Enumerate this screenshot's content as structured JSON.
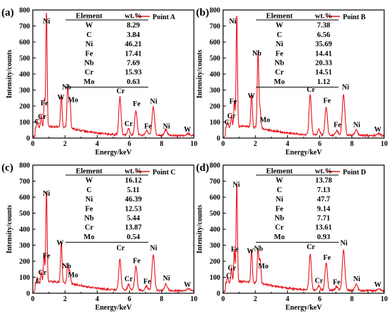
{
  "figure": {
    "panels": [
      {
        "panel_label": "(a)",
        "legend": "Point A",
        "table": {
          "headers": [
            "Element",
            "wt.%"
          ],
          "rows": [
            [
              "W",
              "8.29"
            ],
            [
              "C",
              "3.84"
            ],
            [
              "Ni",
              "46.21"
            ],
            [
              "Fe",
              "17.41"
            ],
            [
              "Nb",
              "7.69"
            ],
            [
              "Cr",
              "15.93"
            ],
            [
              "Mo",
              "0.63"
            ]
          ]
        },
        "peak_labels": [
          {
            "text": "C",
            "x": 0.28,
            "y": 90
          },
          {
            "text": "Cr",
            "x": 0.58,
            "y": 120
          },
          {
            "text": "Fe",
            "x": 0.72,
            "y": 205
          },
          {
            "text": "Ni",
            "x": 0.85,
            "y": 715
          },
          {
            "text": "W",
            "x": 1.75,
            "y": 240
          },
          {
            "text": "Nb",
            "x": 2.1,
            "y": 305
          },
          {
            "text": "Mo",
            "x": 2.5,
            "y": 225
          },
          {
            "text": "Cr",
            "x": 5.45,
            "y": 280
          },
          {
            "text": "Cr",
            "x": 5.95,
            "y": 75
          },
          {
            "text": "Fe",
            "x": 6.45,
            "y": 200
          },
          {
            "text": "Fe",
            "x": 7.15,
            "y": 60
          },
          {
            "text": "Ni",
            "x": 7.5,
            "y": 215
          },
          {
            "text": "Ni",
            "x": 8.3,
            "y": 60
          },
          {
            "text": "W",
            "x": 9.6,
            "y": 40
          }
        ]
      },
      {
        "panel_label": "(b)",
        "legend": "Point B",
        "table": {
          "headers": [
            "Element",
            "wt.%"
          ],
          "rows": [
            [
              "W",
              "7.38"
            ],
            [
              "C",
              "6.56"
            ],
            [
              "Ni",
              "35.69"
            ],
            [
              "Fe",
              "14.41"
            ],
            [
              "Nb",
              "20.33"
            ],
            [
              "Cr",
              "14.51"
            ],
            [
              "Mo",
              "1.12"
            ]
          ]
        },
        "peak_labels": [
          {
            "text": "C",
            "x": 0.25,
            "y": 85
          },
          {
            "text": "Cr",
            "x": 0.52,
            "y": 125
          },
          {
            "text": "Fe",
            "x": 0.62,
            "y": 215
          },
          {
            "text": "Ni",
            "x": 0.6,
            "y": 715
          },
          {
            "text": "W",
            "x": 1.75,
            "y": 250
          },
          {
            "text": "Nb",
            "x": 2.1,
            "y": 515
          },
          {
            "text": "Mo",
            "x": 2.6,
            "y": 100
          },
          {
            "text": "Cr",
            "x": 5.45,
            "y": 290
          },
          {
            "text": "Fe",
            "x": 6.45,
            "y": 220
          },
          {
            "text": "Fe",
            "x": 7.1,
            "y": 70
          },
          {
            "text": "Ni",
            "x": 7.6,
            "y": 305
          },
          {
            "text": "Ni",
            "x": 8.3,
            "y": 70
          },
          {
            "text": "W",
            "x": 9.6,
            "y": 40
          }
        ]
      },
      {
        "panel_label": "(c)",
        "legend": "Point C",
        "table": {
          "headers": [
            "Element",
            "wt.%"
          ],
          "rows": [
            [
              "W",
              "16.12"
            ],
            [
              "C",
              "5.11"
            ],
            [
              "Ni",
              "46.39"
            ],
            [
              "Fe",
              "12.53"
            ],
            [
              "Nb",
              "5.44"
            ],
            [
              "Cr",
              "13.87"
            ],
            [
              "Mo",
              "0.54"
            ]
          ]
        },
        "peak_labels": [
          {
            "text": "C",
            "x": 0.35,
            "y": 60
          },
          {
            "text": "Cr",
            "x": 0.6,
            "y": 115
          },
          {
            "text": "Fe",
            "x": 0.85,
            "y": 220
          },
          {
            "text": "Ni",
            "x": 0.85,
            "y": 610
          },
          {
            "text": "W",
            "x": 1.7,
            "y": 300
          },
          {
            "text": "Nb",
            "x": 2.1,
            "y": 155
          },
          {
            "text": "Mo",
            "x": 2.5,
            "y": 100
          },
          {
            "text": "Cr",
            "x": 5.45,
            "y": 270
          },
          {
            "text": "Cr",
            "x": 5.95,
            "y": 75
          },
          {
            "text": "Fe",
            "x": 6.45,
            "y": 190
          },
          {
            "text": "Fe",
            "x": 7.1,
            "y": 60
          },
          {
            "text": "Ni",
            "x": 7.5,
            "y": 270
          },
          {
            "text": "Ni",
            "x": 8.3,
            "y": 80
          },
          {
            "text": "W",
            "x": 9.6,
            "y": 40
          }
        ]
      },
      {
        "panel_label": "(d)",
        "legend": "Point D",
        "table": {
          "headers": [
            "Element",
            "wt.%"
          ],
          "rows": [
            [
              "W",
              "13.78"
            ],
            [
              "C",
              "7.13"
            ],
            [
              "Ni",
              "47.7"
            ],
            [
              "Fe",
              "9.14"
            ],
            [
              "Nb",
              "7.71"
            ],
            [
              "Cr",
              "13.61"
            ],
            [
              "Mo",
              "0.93"
            ]
          ]
        },
        "peak_labels": [
          {
            "text": "C",
            "x": 0.35,
            "y": 95
          },
          {
            "text": "Cr",
            "x": 0.55,
            "y": 145
          },
          {
            "text": "Fe",
            "x": 0.72,
            "y": 260
          },
          {
            "text": "Ni",
            "x": 0.82,
            "y": 665
          },
          {
            "text": "W",
            "x": 1.7,
            "y": 250
          },
          {
            "text": "Nb",
            "x": 2.2,
            "y": 265
          },
          {
            "text": "Mo",
            "x": 2.5,
            "y": 155
          },
          {
            "text": "Cr",
            "x": 5.45,
            "y": 275
          },
          {
            "text": "Cr",
            "x": 5.95,
            "y": 65
          },
          {
            "text": "Fe",
            "x": 6.45,
            "y": 210
          },
          {
            "text": "Fe",
            "x": 7.05,
            "y": 55
          },
          {
            "text": "Ni",
            "x": 7.5,
            "y": 300
          },
          {
            "text": "Ni",
            "x": 8.3,
            "y": 75
          },
          {
            "text": "W",
            "x": 9.6,
            "y": 40
          }
        ]
      }
    ]
  },
  "chart_data": [
    {
      "type": "line",
      "title": "",
      "panel": "(a)",
      "xlabel": "Energy/keV",
      "ylabel": "Intensity/counts",
      "xlim": [
        0,
        10
      ],
      "ylim": [
        0,
        800
      ],
      "xticks": [
        0,
        2,
        4,
        6,
        8,
        10
      ],
      "yticks": [
        0,
        100,
        200,
        300,
        400,
        500,
        600,
        700,
        800
      ],
      "series": [
        {
          "name": "Point A",
          "color": "#e8141c",
          "peaks": [
            [
              0.28,
              40
            ],
            [
              0.52,
              75
            ],
            [
              0.72,
              170
            ],
            [
              0.85,
              730
            ],
            [
              1.77,
              210
            ],
            [
              2.17,
              265
            ],
            [
              2.3,
              190
            ],
            [
              5.41,
              240
            ],
            [
              5.95,
              40
            ],
            [
              6.4,
              155
            ],
            [
              7.06,
              30
            ],
            [
              7.48,
              175
            ],
            [
              8.26,
              35
            ],
            [
              9.67,
              12
            ]
          ]
        }
      ]
    },
    {
      "type": "line",
      "title": "",
      "panel": "(b)",
      "xlabel": "Energy/keV",
      "ylabel": "Intensity/counts",
      "xlim": [
        0,
        10
      ],
      "ylim": [
        0,
        800
      ],
      "xticks": [
        0,
        2,
        4,
        6,
        8,
        10
      ],
      "yticks": [
        0,
        100,
        200,
        300,
        400,
        500,
        600,
        700,
        800
      ],
      "series": [
        {
          "name": "Point B",
          "color": "#e8141c",
          "peaks": [
            [
              0.28,
              35
            ],
            [
              0.52,
              80
            ],
            [
              0.7,
              170
            ],
            [
              0.85,
              710
            ],
            [
              1.77,
              210
            ],
            [
              2.17,
              470
            ],
            [
              2.3,
              120
            ],
            [
              5.41,
              250
            ],
            [
              5.95,
              35
            ],
            [
              6.4,
              175
            ],
            [
              7.06,
              30
            ],
            [
              7.48,
              255
            ],
            [
              8.26,
              35
            ],
            [
              9.67,
              12
            ]
          ]
        }
      ]
    },
    {
      "type": "line",
      "title": "",
      "panel": "(c)",
      "xlabel": "Energy/keV",
      "ylabel": "Intensity/counts",
      "xlim": [
        0,
        10
      ],
      "ylim": [
        0,
        800
      ],
      "xticks": [
        0,
        2,
        4,
        6,
        8,
        10
      ],
      "yticks": [
        0,
        100,
        200,
        300,
        400,
        500,
        600,
        700,
        800
      ],
      "series": [
        {
          "name": "Point C",
          "color": "#e8141c",
          "peaks": [
            [
              0.28,
              30
            ],
            [
              0.52,
              70
            ],
            [
              0.7,
              180
            ],
            [
              0.85,
              580
            ],
            [
              1.77,
              260
            ],
            [
              2.17,
              120
            ],
            [
              2.3,
              80
            ],
            [
              5.41,
              200
            ],
            [
              5.95,
              35
            ],
            [
              6.4,
              150
            ],
            [
              7.06,
              28
            ],
            [
              7.48,
              225
            ],
            [
              8.26,
              40
            ],
            [
              9.67,
              12
            ]
          ]
        }
      ]
    },
    {
      "type": "line",
      "title": "",
      "panel": "(d)",
      "xlabel": "Energy/keV",
      "ylabel": "Intensity/counts",
      "xlim": [
        0,
        10
      ],
      "ylim": [
        0,
        800
      ],
      "xticks": [
        0,
        2,
        4,
        6,
        8,
        10
      ],
      "yticks": [
        0,
        100,
        200,
        300,
        400,
        500,
        600,
        700,
        800
      ],
      "series": [
        {
          "name": "Point D",
          "color": "#e8141c",
          "peaks": [
            [
              0.28,
              40
            ],
            [
              0.52,
              95
            ],
            [
              0.7,
              205
            ],
            [
              0.85,
              630
            ],
            [
              1.77,
              205
            ],
            [
              2.17,
              215
            ],
            [
              2.3,
              150
            ],
            [
              5.41,
              225
            ],
            [
              5.95,
              30
            ],
            [
              6.4,
              170
            ],
            [
              7.06,
              25
            ],
            [
              7.48,
              250
            ],
            [
              8.26,
              40
            ],
            [
              9.67,
              12
            ]
          ]
        }
      ]
    }
  ]
}
